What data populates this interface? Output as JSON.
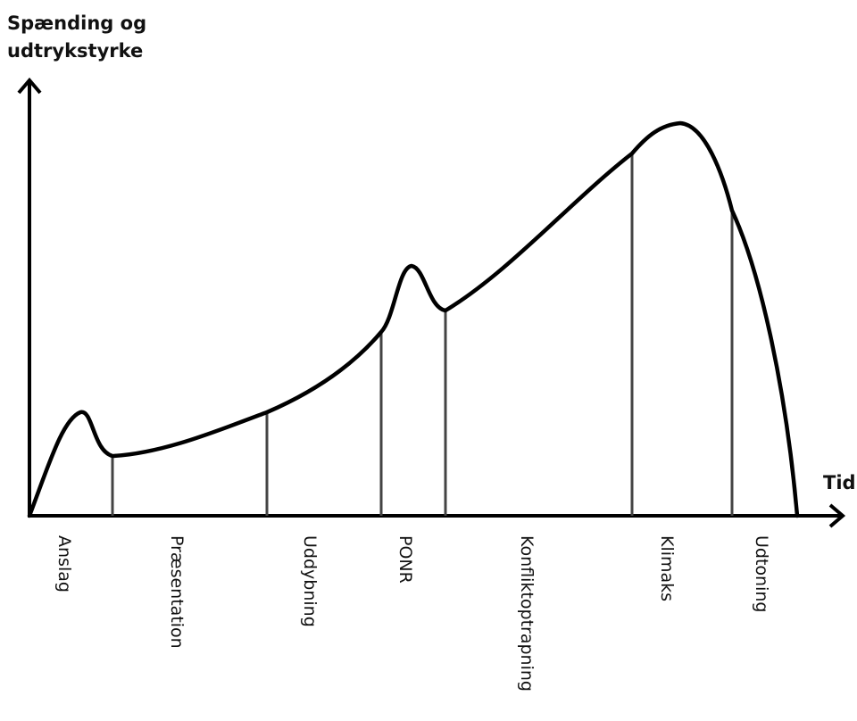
{
  "y_axis_title_lines": [
    "Spænding og",
    "udtrykstyrke"
  ],
  "x_axis_title": "Tid",
  "phases": [
    {
      "label": "Anslag"
    },
    {
      "label": "Præsentation"
    },
    {
      "label": "Uddybning"
    },
    {
      "label": "PONR"
    },
    {
      "label": "Konfliktoptrapning"
    },
    {
      "label": "Klimaks"
    },
    {
      "label": "Udtoning"
    }
  ],
  "colors": {
    "curve": "#000000",
    "axes": "#000000",
    "phase_lines": "#444444"
  }
}
